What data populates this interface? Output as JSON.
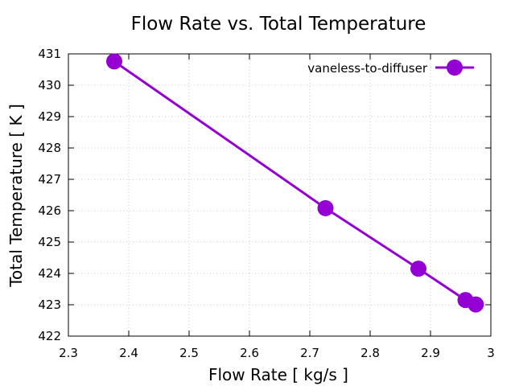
{
  "chart_data": {
    "type": "line",
    "title": "Flow Rate vs. Total Temperature",
    "xlabel": "Flow Rate [ kg/s ]",
    "ylabel": "Total Temperature [ K ]",
    "xlim": [
      2.3,
      3.0
    ],
    "ylim": [
      422,
      431
    ],
    "xticks": [
      "2.3",
      "2.4",
      "2.5",
      "2.6",
      "2.7",
      "2.8",
      "2.9",
      "3"
    ],
    "yticks": [
      "422",
      "423",
      "424",
      "425",
      "426",
      "427",
      "428",
      "429",
      "430",
      "431"
    ],
    "grid": true,
    "legend_position": "top-right",
    "series": [
      {
        "name": "vaneless-to-diffuser",
        "color": "#9400d3",
        "x": [
          2.376,
          2.726,
          2.88,
          2.958,
          2.975
        ],
        "y": [
          430.76,
          426.08,
          424.15,
          423.15,
          423.01
        ]
      }
    ]
  }
}
